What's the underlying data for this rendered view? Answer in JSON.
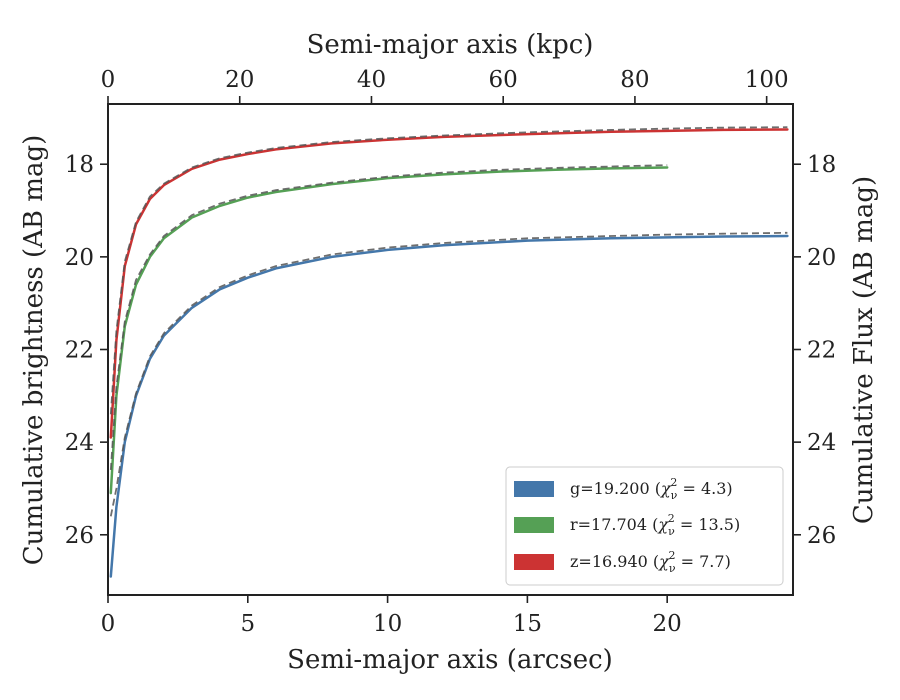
{
  "chart_data": {
    "type": "line",
    "xlabel": "Semi-major axis (arcsec)",
    "ylabel": "Cumulative brightness (AB mag)",
    "x2label": "Semi-major axis (kpc)",
    "y2label": "Cumulative Flux (AB mag)",
    "xlim": [
      0,
      24.5
    ],
    "ylim": [
      27.3,
      16.7
    ],
    "x2lim": [
      0,
      104
    ],
    "y_inverted": true,
    "xticks": [
      0,
      5,
      10,
      15,
      20
    ],
    "yticks": [
      18,
      20,
      22,
      24,
      26
    ],
    "x2ticks": [
      0,
      20,
      40,
      60,
      80,
      100
    ],
    "grid": false,
    "legend_position": "lower-right",
    "series": [
      {
        "band": "g",
        "label_prefix": "g=19.200 (",
        "chi_value": " = 4.3)",
        "color": "#4477aa",
        "x": [
          0.1,
          0.3,
          0.6,
          1.0,
          1.5,
          2.0,
          3.0,
          4.0,
          5.0,
          6.0,
          8.0,
          10.0,
          12.0,
          15.0,
          18.0,
          20.0,
          22.0,
          24.3
        ],
        "y": [
          26.9,
          25.4,
          24.0,
          23.0,
          22.2,
          21.7,
          21.1,
          20.7,
          20.45,
          20.25,
          20.0,
          19.85,
          19.75,
          19.65,
          19.6,
          19.58,
          19.56,
          19.55
        ],
        "fit_y": [
          25.6,
          25.0,
          23.9,
          22.95,
          22.15,
          21.65,
          21.05,
          20.65,
          20.4,
          20.2,
          19.95,
          19.8,
          19.7,
          19.6,
          19.55,
          19.52,
          19.5,
          19.48
        ]
      },
      {
        "band": "r",
        "label_prefix": "r=17.704 (",
        "chi_value": " = 13.5)",
        "color": "#55a055",
        "x": [
          0.1,
          0.3,
          0.6,
          1.0,
          1.5,
          2.0,
          3.0,
          4.0,
          5.0,
          6.0,
          8.0,
          10.0,
          12.0,
          14.0,
          16.0,
          18.0,
          20.0
        ],
        "y": [
          25.1,
          23.0,
          21.5,
          20.6,
          20.0,
          19.6,
          19.15,
          18.9,
          18.72,
          18.6,
          18.43,
          18.3,
          18.22,
          18.16,
          18.12,
          18.09,
          18.07
        ],
        "fit_y": [
          24.6,
          22.8,
          21.4,
          20.5,
          19.95,
          19.55,
          19.1,
          18.85,
          18.68,
          18.56,
          18.4,
          18.27,
          18.18,
          18.12,
          18.08,
          18.05,
          18.02
        ]
      },
      {
        "band": "z",
        "label_prefix": "z=16.940 (",
        "chi_value": " = 7.7)",
        "color": "#cc3333",
        "x": [
          0.1,
          0.3,
          0.6,
          1.0,
          1.5,
          2.0,
          3.0,
          4.0,
          5.0,
          6.0,
          8.0,
          10.0,
          12.0,
          15.0,
          18.0,
          20.0,
          22.0,
          24.3
        ],
        "y": [
          23.9,
          21.8,
          20.2,
          19.3,
          18.75,
          18.45,
          18.1,
          17.9,
          17.78,
          17.68,
          17.55,
          17.47,
          17.41,
          17.35,
          17.3,
          17.28,
          17.26,
          17.25
        ],
        "fit_y": [
          23.4,
          21.6,
          20.1,
          19.25,
          18.7,
          18.42,
          18.07,
          17.87,
          17.75,
          17.65,
          17.52,
          17.44,
          17.38,
          17.31,
          17.26,
          17.23,
          17.21,
          17.2
        ]
      }
    ]
  }
}
